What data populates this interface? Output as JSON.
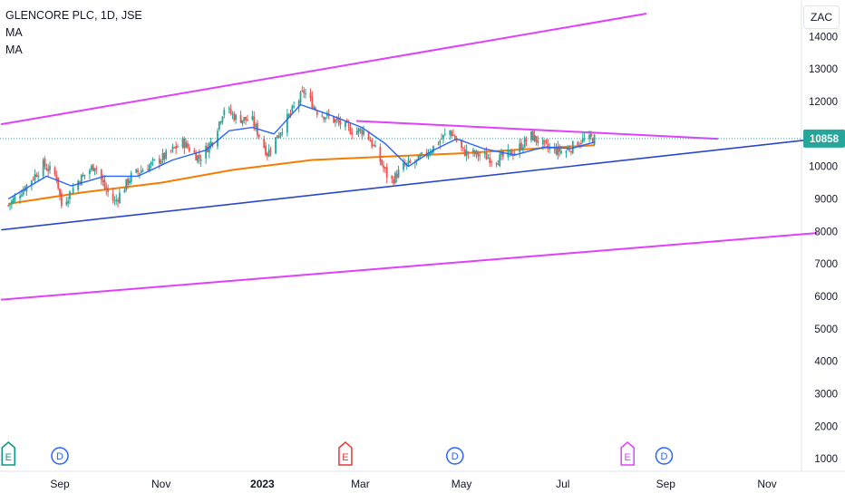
{
  "legend": {
    "title": "GLENCORE PLC, 1D, JSE",
    "indicator_1": "MA",
    "indicator_2": "MA"
  },
  "currency_button": "ZAC",
  "chart_data": {
    "type": "candlestick",
    "y_ticks": [
      1000,
      2000,
      3000,
      4000,
      5000,
      6000,
      7000,
      8000,
      9000,
      10000,
      11000,
      12000,
      13000,
      14000
    ],
    "ylim": [
      700,
      14900
    ],
    "x_labels": [
      "Sep",
      "Nov",
      "2023",
      "Mar",
      "May",
      "Jul",
      "Sep",
      "Nov"
    ],
    "x_label_dates": [
      "2022-09-01",
      "2022-11-01",
      "2023-01-01",
      "2023-03-01",
      "2023-05-01",
      "2023-07-01",
      "2023-09-01",
      "2023-11-01"
    ],
    "last_price": "10858",
    "last_price_value": 10858,
    "colors": {
      "up": "#26a69a",
      "down": "#ef5350",
      "ma_short": "#2962ff",
      "ma_long": "#f57c00",
      "channel": "#e040fb",
      "trendline": "#2947c9",
      "price_label": "#26a69a"
    },
    "price_path": [
      [
        "2022-08-01",
        8800
      ],
      [
        "2022-08-10",
        9300
      ],
      [
        "2022-08-22",
        10050
      ],
      [
        "2022-08-30",
        9700
      ],
      [
        "2022-09-02",
        8800
      ],
      [
        "2022-09-12",
        9550
      ],
      [
        "2022-09-22",
        10050
      ],
      [
        "2022-09-28",
        9350
      ],
      [
        "2022-10-04",
        8900
      ],
      [
        "2022-10-14",
        9700
      ],
      [
        "2022-10-24",
        10000
      ],
      [
        "2022-11-03",
        10300
      ],
      [
        "2022-11-14",
        10750
      ],
      [
        "2022-11-24",
        10250
      ],
      [
        "2022-12-02",
        10800
      ],
      [
        "2022-12-09",
        11800
      ],
      [
        "2022-12-16",
        11500
      ],
      [
        "2022-12-26",
        11400
      ],
      [
        "2023-01-04",
        10400
      ],
      [
        "2023-01-14",
        11300
      ],
      [
        "2023-01-26",
        12300
      ],
      [
        "2023-02-03",
        11700
      ],
      [
        "2023-02-14",
        11400
      ],
      [
        "2023-02-24",
        11100
      ],
      [
        "2023-03-04",
        11100
      ],
      [
        "2023-03-11",
        10400
      ],
      [
        "2023-03-19",
        9500
      ],
      [
        "2023-03-27",
        10000
      ],
      [
        "2023-04-04",
        10150
      ],
      [
        "2023-04-14",
        10600
      ],
      [
        "2023-04-24",
        11100
      ],
      [
        "2023-05-02",
        10450
      ],
      [
        "2023-05-12",
        10350
      ],
      [
        "2023-05-22",
        10200
      ],
      [
        "2023-06-02",
        10450
      ],
      [
        "2023-06-12",
        10950
      ],
      [
        "2023-06-22",
        10550
      ],
      [
        "2023-07-02",
        10450
      ],
      [
        "2023-07-12",
        10800
      ],
      [
        "2023-07-20",
        10858
      ]
    ],
    "ma_short_path": [
      [
        "2022-08-01",
        9000
      ],
      [
        "2022-08-24",
        9700
      ],
      [
        "2022-09-08",
        9400
      ],
      [
        "2022-09-28",
        9700
      ],
      [
        "2022-10-18",
        9700
      ],
      [
        "2022-11-08",
        10200
      ],
      [
        "2022-11-28",
        10500
      ],
      [
        "2022-12-12",
        11100
      ],
      [
        "2022-12-26",
        11200
      ],
      [
        "2023-01-08",
        11000
      ],
      [
        "2023-01-24",
        11900
      ],
      [
        "2023-02-10",
        11600
      ],
      [
        "2023-03-02",
        11200
      ],
      [
        "2023-03-16",
        10700
      ],
      [
        "2023-03-30",
        10000
      ],
      [
        "2023-04-14",
        10500
      ],
      [
        "2023-04-28",
        10850
      ],
      [
        "2023-05-14",
        10550
      ],
      [
        "2023-06-02",
        10350
      ],
      [
        "2023-06-20",
        10600
      ],
      [
        "2023-07-06",
        10550
      ],
      [
        "2023-07-20",
        10750
      ]
    ],
    "ma_long_path": [
      [
        "2022-08-01",
        8850
      ],
      [
        "2022-09-15",
        9200
      ],
      [
        "2022-11-01",
        9500
      ],
      [
        "2022-12-15",
        9900
      ],
      [
        "2023-01-31",
        10200
      ],
      [
        "2023-03-15",
        10300
      ],
      [
        "2023-04-30",
        10400
      ],
      [
        "2023-06-15",
        10550
      ],
      [
        "2023-07-20",
        10650
      ]
    ],
    "drawings": {
      "upper_channel": [
        [
          "2022-07-28",
          11300
        ],
        [
          "2023-08-20",
          14700
        ]
      ],
      "lower_channel": [
        [
          "2022-07-28",
          5900
        ],
        [
          "2023-12-01",
          7950
        ]
      ],
      "ascending_trendline": [
        [
          "2022-07-28",
          8050
        ],
        [
          "2023-12-01",
          10850
        ]
      ],
      "descending_trendline": [
        [
          "2023-02-27",
          11400
        ],
        [
          "2023-10-02",
          10850
        ]
      ]
    },
    "event_markers": [
      {
        "date": "2022-08-01",
        "type": "E",
        "kind": "earnings"
      },
      {
        "date": "2022-09-01",
        "type": "D",
        "kind": "dividend"
      },
      {
        "date": "2023-02-20",
        "type": "E",
        "kind": "earnings"
      },
      {
        "date": "2023-04-27",
        "type": "D",
        "kind": "dividend"
      },
      {
        "date": "2023-08-09",
        "type": "E",
        "kind": "earnings-upcoming"
      },
      {
        "date": "2023-08-31",
        "type": "D",
        "kind": "dividend-upcoming"
      }
    ]
  }
}
